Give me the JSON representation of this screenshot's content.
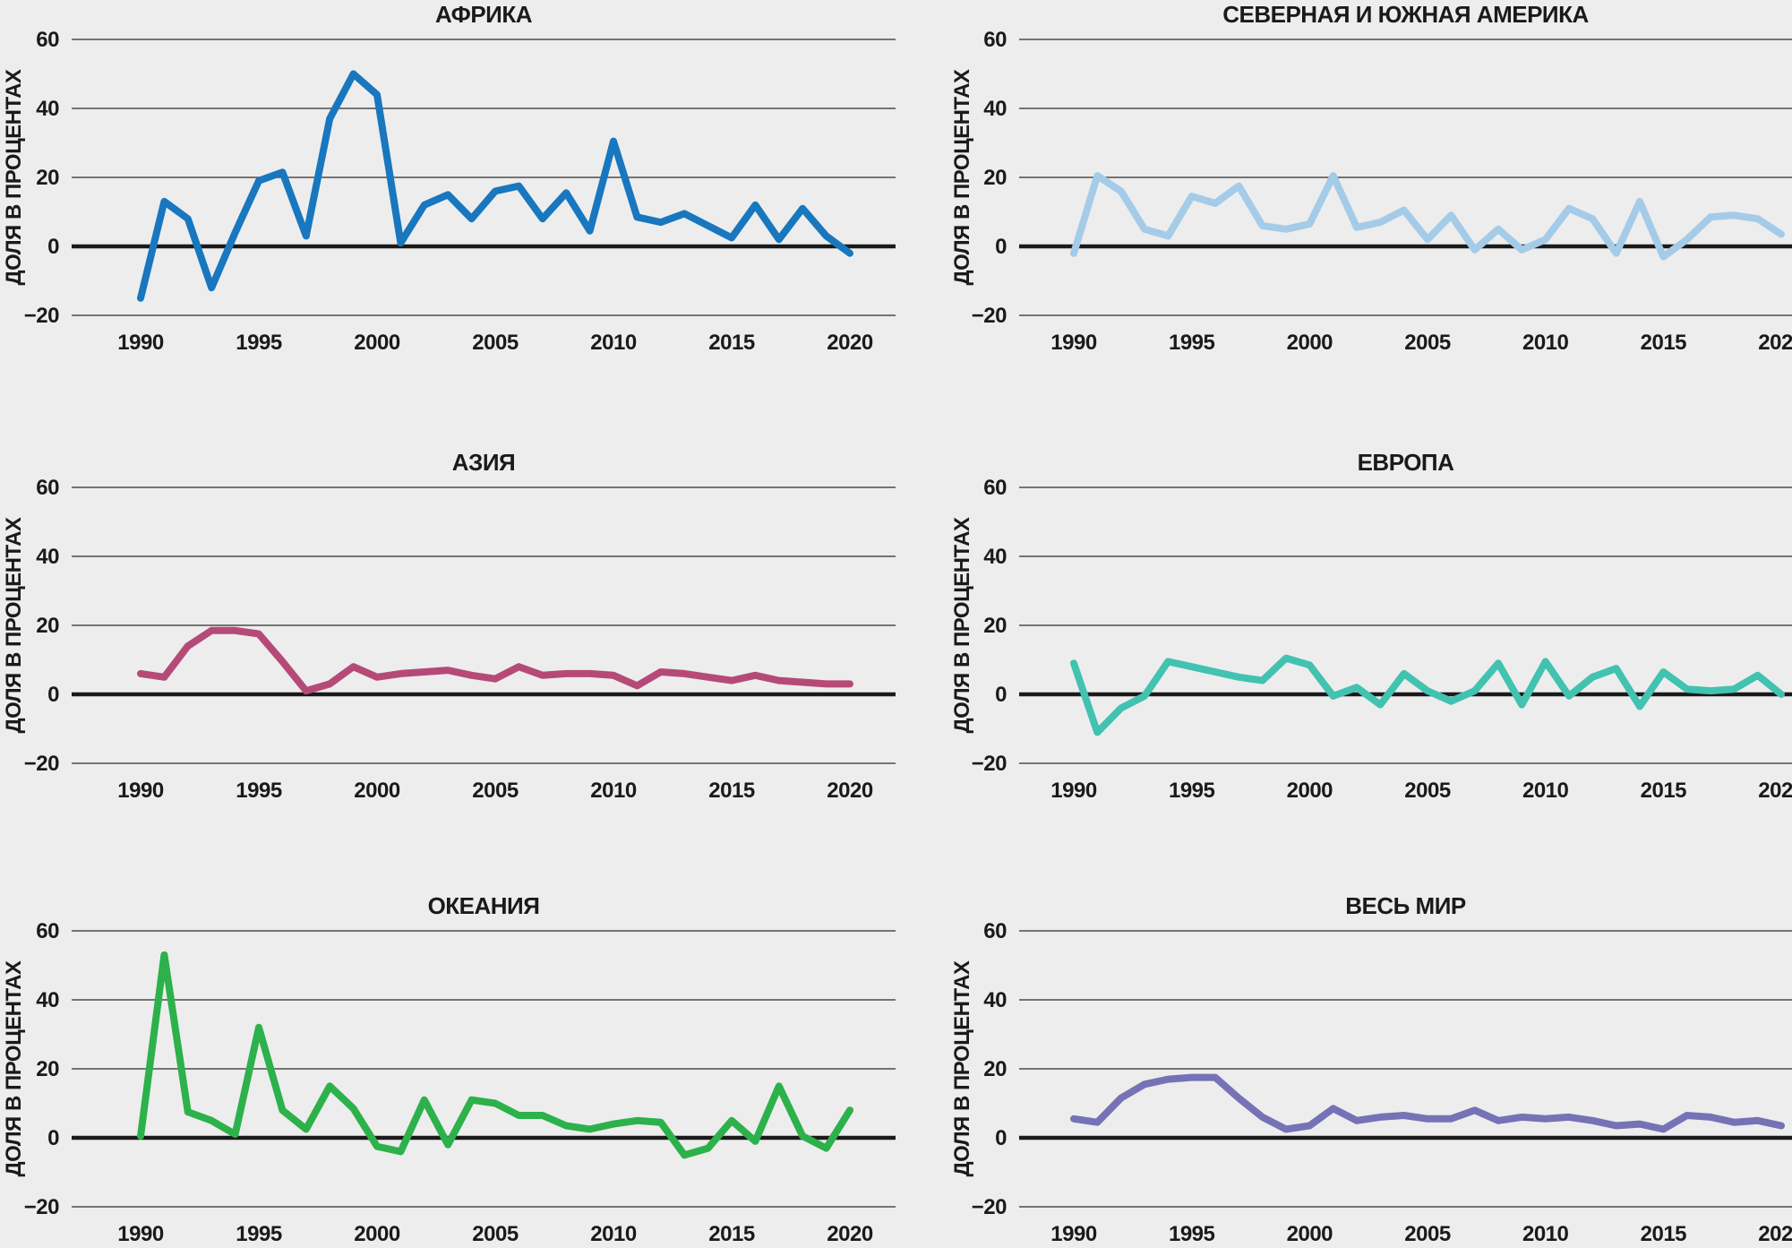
{
  "page": {
    "background_color": "#ededed",
    "text_color": "#1a1a1a"
  },
  "axis": {
    "ylabel": "ДОЛЯ В ПРОЦЕНТАХ",
    "yticks": [
      60,
      40,
      20,
      0,
      -20
    ],
    "ytick_labels": [
      "60",
      "40",
      "20",
      "0",
      "−20"
    ],
    "xticks": [
      1990,
      1995,
      2000,
      2005,
      2010,
      2015,
      2020
    ],
    "ylim": [
      -28,
      66
    ],
    "grid": true,
    "grid_color": "#4d4d4d",
    "zero_line_color": "#1a1a1a"
  },
  "chart_data": [
    {
      "type": "line",
      "name": "africa",
      "title": "АФРИКА",
      "color": "#1877be",
      "x_start": 1990,
      "x_end": 2020,
      "values": [
        -15,
        13,
        8,
        -12,
        4,
        19,
        21.5,
        3,
        37,
        50,
        44,
        1,
        12,
        15,
        8,
        16,
        17.5,
        8,
        15.5,
        4.5,
        30.5,
        8.5,
        7,
        9.5,
        6,
        2.5,
        12,
        2,
        11,
        3,
        -2
      ]
    },
    {
      "type": "line",
      "name": "north-and-south-america",
      "title": "СЕВЕРНАЯ И ЮЖНАЯ АМЕРИКА",
      "color": "#a4cbe8",
      "x_start": 1990,
      "x_end": 2020,
      "values": [
        -2,
        20.5,
        16,
        5,
        3,
        14.5,
        12.5,
        17.5,
        6,
        5,
        6.5,
        20.5,
        5.5,
        7,
        10.5,
        2,
        9,
        -1,
        5,
        -1,
        2,
        11,
        8,
        -2,
        13,
        -3,
        2,
        8.5,
        9,
        8,
        3.5
      ]
    },
    {
      "type": "line",
      "name": "asia",
      "title": "АЗИЯ",
      "color": "#b54a78",
      "x_start": 1990,
      "x_end": 2020,
      "values": [
        6,
        5,
        14,
        18.5,
        18.5,
        17.5,
        9.5,
        1,
        3,
        8,
        5,
        6,
        6.5,
        7,
        5.5,
        4.5,
        8,
        5.5,
        6,
        6,
        5.5,
        2.5,
        6.5,
        6,
        5,
        4,
        5.5,
        4,
        3.5,
        3,
        3
      ]
    },
    {
      "type": "line",
      "name": "europe",
      "title": "ЕВРОПА",
      "color": "#42c2b0",
      "x_start": 1990,
      "x_end": 2020,
      "values": [
        9,
        -11,
        -4,
        -0.5,
        9.5,
        8,
        6.5,
        5,
        4,
        10.5,
        8.5,
        -0.5,
        2,
        -3,
        6,
        1,
        -2,
        1,
        9,
        -3,
        9.5,
        -0.5,
        5,
        7.5,
        -3.5,
        6.5,
        1.5,
        1,
        1.5,
        5.5,
        0
      ]
    },
    {
      "type": "line",
      "name": "oceania",
      "title": "ОКЕАНИЯ",
      "color": "#2cb14b",
      "x_start": 1990,
      "x_end": 2020,
      "values": [
        0.5,
        53,
        7.5,
        5,
        1,
        32,
        8,
        2.5,
        15,
        8.5,
        -2.5,
        -4,
        11,
        -2,
        11,
        10,
        6.5,
        6.5,
        3.5,
        2.5,
        4,
        5,
        4.5,
        -5,
        -3,
        5,
        -1,
        15,
        0.5,
        -3,
        8
      ]
    },
    {
      "type": "line",
      "name": "world",
      "title": "ВЕСЬ МИР",
      "color": "#7672b6",
      "x_start": 1990,
      "x_end": 2020,
      "values": [
        5.5,
        4.5,
        11.5,
        15.5,
        17,
        17.5,
        17.5,
        11.5,
        6,
        2.5,
        3.5,
        8.5,
        5,
        6,
        6.5,
        5.5,
        5.5,
        8,
        5,
        6,
        5.5,
        6,
        5,
        3.5,
        4,
        2.5,
        6.5,
        6,
        4.5,
        5,
        3.5
      ]
    }
  ]
}
